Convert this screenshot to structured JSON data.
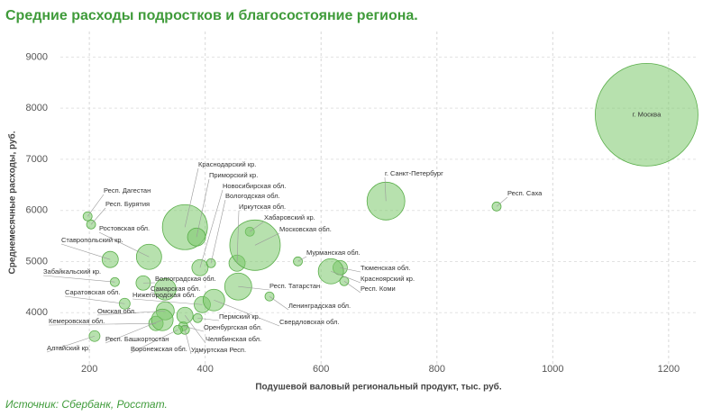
{
  "chart_data": {
    "type": "bubble",
    "title": "Средние расходы подростков и благосостояние региона.",
    "x_label": "Подушевой валовый региональный продукт, тыс. руб.",
    "y_label": "Среднемесячные расходы, руб.",
    "source": "Источник: Сбербанк, Росстат.",
    "color": "#7cc96c",
    "edge_color": "#5aae4a",
    "grid": true,
    "xlim": [
      150,
      1250
    ],
    "xticks": [
      200,
      400,
      600,
      800,
      1000,
      1200
    ],
    "ylim": [
      3000,
      9500
    ],
    "yticks": [
      4000,
      5000,
      6000,
      7000,
      8000,
      9000
    ],
    "labels": [
      "г. Москва",
      "г. Санкт-Петербург",
      "Респ. Саха",
      "Респ. Дагестан",
      "Респ. Бурятия",
      "Краснодарский кр.",
      "Приморский кр.",
      "Новосибирская обл.",
      "Вологодская обл.",
      "Иркутская обл.",
      "Хабаровский кр.",
      "Московская обл.",
      "Мурманская обл.",
      "Тюменская обл.",
      "Красноярский кр.",
      "Респ. Коми",
      "Ростовская обл.",
      "Ставропольский кр.",
      "Забайкальский кр.",
      "Волгоградская обл.",
      "Саратовская обл.",
      "Самарская обл.",
      "Нижегородская обл.",
      "Респ. Татарстан",
      "Ленинградская обл.",
      "Омская обл.",
      "Кемеровская обл.",
      "Пермский кр.",
      "Оренбургская обл.",
      "Челябинская обл.",
      "Удмуртская Респ.",
      "Воронежская обл.",
      "Респ. Башкортостан",
      "Алтайский кр.",
      "Свердловская обл."
    ],
    "x": [
      1162,
      712,
      903,
      197,
      203,
      365,
      385,
      391,
      410,
      455,
      477,
      486,
      560,
      633,
      617,
      640,
      303,
      236,
      244,
      293,
      261,
      331,
      395,
      457,
      511,
      331,
      315,
      387,
      362,
      365,
      365,
      353,
      326,
      209,
      415
    ],
    "values": [
      7873,
      6183,
      6077,
      5884,
      5725,
      5673,
      5479,
      4880,
      4968,
      4968,
      5585,
      5320,
      5003,
      4880,
      4810,
      4616,
      5092,
      5040,
      4599,
      4581,
      4176,
      4458,
      4158,
      4511,
      4317,
      4035,
      3789,
      3894,
      3736,
      3947,
      3665,
      3665,
      3859,
      3542,
      4246
    ],
    "sizes": [
      13000,
      1764,
      100,
      100,
      100,
      2500,
      400,
      324,
      100,
      324,
      100,
      3136,
      100,
      256,
      784,
      100,
      784,
      324,
      100,
      256,
      144,
      576,
      324,
      900,
      100,
      400,
      256,
      100,
      100,
      324,
      100,
      100,
      576,
      144,
      576
    ]
  }
}
